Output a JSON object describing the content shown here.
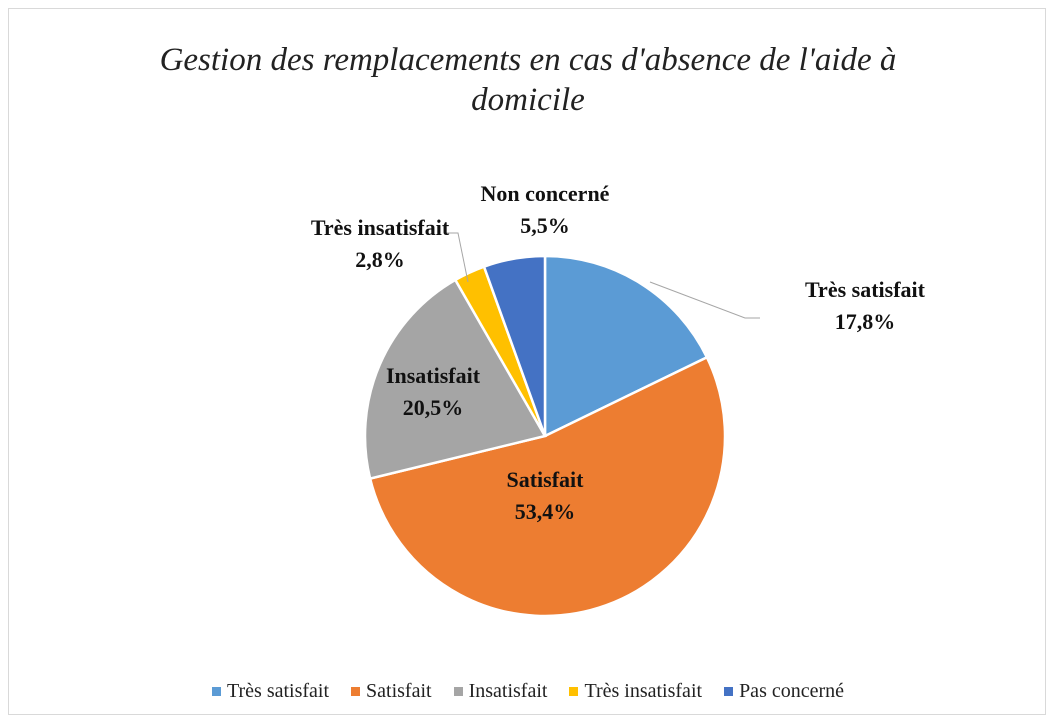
{
  "chart_data": {
    "type": "pie",
    "title": "Gestion des remplacements en cas d'absence de l'aide à domicile",
    "categories": [
      "Très satisfait",
      "Satisfait",
      "Insatisfait",
      "Très insatisfait",
      "Pas concerné"
    ],
    "label_names": [
      "Très satisfait",
      "Satisfait",
      "Insatisfait",
      "Très insatisfait",
      "Non concerné"
    ],
    "values": [
      17.8,
      53.4,
      20.5,
      2.8,
      5.5
    ],
    "value_labels": [
      "17,8%",
      "53,4%",
      "20,5%",
      "2,8%",
      "5,5%"
    ],
    "colors": [
      "#5b9bd5",
      "#ed7d31",
      "#a5a5a5",
      "#ffc000",
      "#4472c4"
    ],
    "legend": "bottom"
  }
}
